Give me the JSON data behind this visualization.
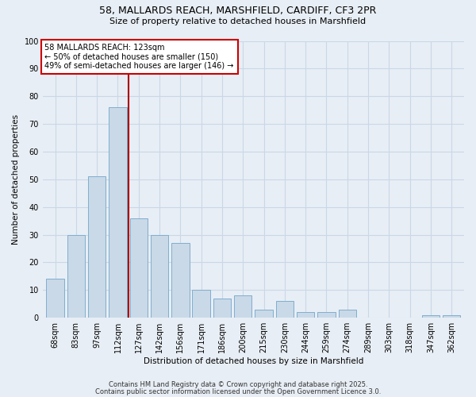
{
  "title1": "58, MALLARDS REACH, MARSHFIELD, CARDIFF, CF3 2PR",
  "title2": "Size of property relative to detached houses in Marshfield",
  "xlabel": "Distribution of detached houses by size in Marshfield",
  "ylabel": "Number of detached properties",
  "categories": [
    "68sqm",
    "83sqm",
    "97sqm",
    "112sqm",
    "127sqm",
    "142sqm",
    "156sqm",
    "171sqm",
    "186sqm",
    "200sqm",
    "215sqm",
    "230sqm",
    "244sqm",
    "259sqm",
    "274sqm",
    "289sqm",
    "303sqm",
    "318sqm",
    "347sqm",
    "362sqm"
  ],
  "values": [
    14,
    30,
    51,
    76,
    36,
    30,
    27,
    10,
    7,
    8,
    3,
    6,
    2,
    2,
    3,
    0,
    0,
    0,
    1,
    1
  ],
  "bar_color": "#c9d9e8",
  "bar_edge_color": "#7faecf",
  "grid_color": "#c8d8e8",
  "bg_color": "#e8eef5",
  "vline_x": 3.5,
  "vline_color": "#aa0000",
  "annotation_text": "58 MALLARDS REACH: 123sqm\n← 50% of detached houses are smaller (150)\n49% of semi-detached houses are larger (146) →",
  "annotation_box_color": "#cc0000",
  "ylim": [
    0,
    100
  ],
  "yticks": [
    0,
    10,
    20,
    30,
    40,
    50,
    60,
    70,
    80,
    90,
    100
  ],
  "footer1": "Contains HM Land Registry data © Crown copyright and database right 2025.",
  "footer2": "Contains public sector information licensed under the Open Government Licence 3.0."
}
